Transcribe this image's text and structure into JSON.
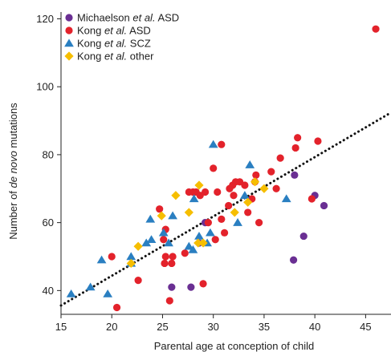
{
  "chart_data": {
    "type": "scatter",
    "xlabel": "Parental age at conception of child",
    "ylabel_parts": [
      "Number of ",
      "de novo",
      " mutations"
    ],
    "xlim": [
      15,
      47.5
    ],
    "ylim": [
      33,
      122
    ],
    "xticks": [
      15,
      20,
      25,
      30,
      35,
      40,
      45
    ],
    "yticks": [
      40,
      60,
      80,
      100,
      120
    ],
    "grid": false,
    "legend_position": "top-left",
    "trend_line": {
      "style": "dotted",
      "color": "#111111",
      "x": [
        15,
        47.5
      ],
      "y": [
        35.6,
        92.4
      ]
    },
    "series": [
      {
        "name_parts": [
          "Michaelson ",
          "et al.",
          " ASD"
        ],
        "marker": "circle",
        "color": "#6a2f93",
        "points": [
          [
            25.9,
            41
          ],
          [
            27.8,
            41
          ],
          [
            28.6,
            54
          ],
          [
            29.2,
            60
          ],
          [
            38,
            74
          ],
          [
            37.9,
            49
          ],
          [
            38.9,
            56
          ],
          [
            40,
            68
          ],
          [
            40.9,
            65
          ]
        ]
      },
      {
        "name_parts": [
          "Kong ",
          "et al.",
          " ASD"
        ],
        "marker": "circle",
        "color": "#e3222b",
        "points": [
          [
            20.5,
            35
          ],
          [
            20,
            50
          ],
          [
            22.6,
            43
          ],
          [
            24.7,
            64
          ],
          [
            25.1,
            55
          ],
          [
            25.3,
            58
          ],
          [
            25.2,
            48
          ],
          [
            25.3,
            50
          ],
          [
            25.7,
            37
          ],
          [
            25.9,
            48
          ],
          [
            26,
            50
          ],
          [
            27.2,
            51
          ],
          [
            27.6,
            69
          ],
          [
            28,
            69
          ],
          [
            28.3,
            69
          ],
          [
            28.7,
            68
          ],
          [
            29,
            42
          ],
          [
            29.2,
            69
          ],
          [
            29.5,
            60
          ],
          [
            30,
            76
          ],
          [
            30.2,
            55
          ],
          [
            30.4,
            69
          ],
          [
            30.8,
            61
          ],
          [
            30.8,
            83
          ],
          [
            31.1,
            57
          ],
          [
            31.5,
            65
          ],
          [
            31.6,
            70
          ],
          [
            31.9,
            71
          ],
          [
            32,
            68
          ],
          [
            32.2,
            72
          ],
          [
            32.6,
            72
          ],
          [
            33.1,
            71
          ],
          [
            33.4,
            63
          ],
          [
            33.8,
            67
          ],
          [
            34.1,
            72
          ],
          [
            34.2,
            74
          ],
          [
            34.5,
            60
          ],
          [
            35.7,
            75
          ],
          [
            36.2,
            70
          ],
          [
            36.6,
            79
          ],
          [
            38.1,
            82
          ],
          [
            38.3,
            85
          ],
          [
            39.7,
            67
          ],
          [
            40.3,
            84
          ],
          [
            46,
            117
          ]
        ]
      },
      {
        "name_parts": [
          "Kong ",
          "et al.",
          " SCZ"
        ],
        "marker": "triangle",
        "color": "#2a7fc1",
        "points": [
          [
            16,
            39
          ],
          [
            17.9,
            41
          ],
          [
            19,
            49
          ],
          [
            19.6,
            39
          ],
          [
            21.9,
            48
          ],
          [
            21.9,
            50
          ],
          [
            23.4,
            54
          ],
          [
            23.9,
            55
          ],
          [
            23.8,
            61
          ],
          [
            25.1,
            57
          ],
          [
            25.6,
            54
          ],
          [
            26,
            62
          ],
          [
            27.6,
            53
          ],
          [
            28,
            52
          ],
          [
            28.1,
            67
          ],
          [
            28.6,
            56
          ],
          [
            29.4,
            54
          ],
          [
            29.7,
            57
          ],
          [
            30,
            83
          ],
          [
            32.4,
            60
          ],
          [
            33.1,
            68
          ],
          [
            33.6,
            77
          ],
          [
            37.2,
            67
          ]
        ]
      },
      {
        "name_parts": [
          "Kong ",
          "et al.",
          " other"
        ],
        "marker": "diamond",
        "color": "#f6be00",
        "points": [
          [
            21.9,
            48
          ],
          [
            22.6,
            53
          ],
          [
            24.9,
            62
          ],
          [
            26.3,
            68
          ],
          [
            27.6,
            63
          ],
          [
            28.5,
            54
          ],
          [
            28.6,
            71
          ],
          [
            29,
            54
          ],
          [
            32.1,
            63
          ],
          [
            33.4,
            66
          ],
          [
            34.1,
            72
          ],
          [
            35,
            70
          ]
        ]
      }
    ]
  }
}
